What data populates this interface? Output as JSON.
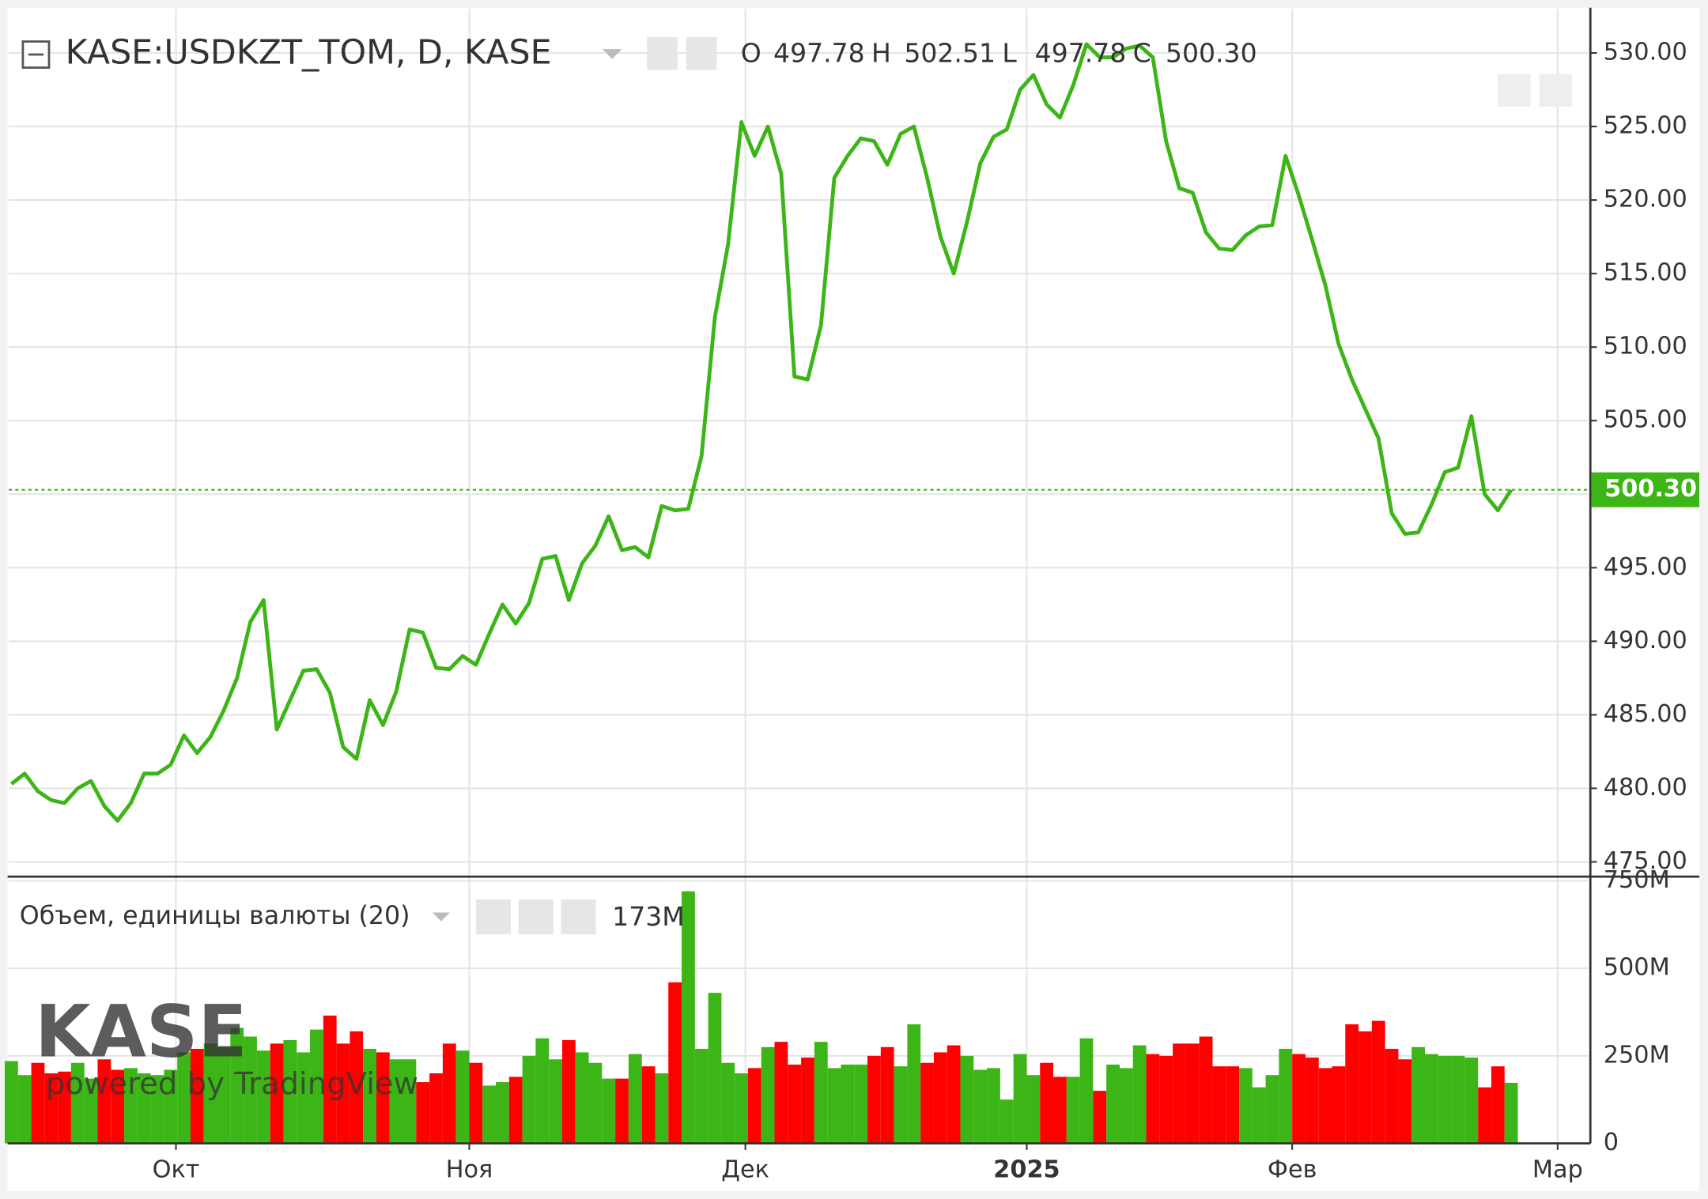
{
  "chart_data": {
    "type": "line",
    "title": "KASE:USDKZT_TOM, D, KASE",
    "ohlc": [
      {
        "key": "O",
        "text": "497.78"
      },
      {
        "key": "H",
        "text": "502.51"
      },
      {
        "key": "L",
        "text": "497.78"
      },
      {
        "key": "C",
        "text": "500.30"
      }
    ],
    "series": [
      {
        "name": "USDKZT_TOM",
        "color": "#3cb516",
        "values": [
          480.3,
          481.0,
          479.8,
          479.2,
          479.0,
          480.0,
          480.5,
          478.8,
          477.8,
          479.0,
          481.0,
          481.0,
          481.6,
          483.6,
          482.4,
          483.5,
          485.3,
          487.5,
          491.3,
          492.8,
          484.0,
          486.0,
          488.0,
          488.1,
          486.5,
          482.8,
          482.0,
          486.0,
          484.3,
          486.6,
          490.8,
          490.6,
          488.2,
          488.1,
          489.0,
          488.4,
          490.5,
          492.5,
          491.2,
          492.6,
          495.6,
          495.8,
          492.8,
          495.3,
          496.5,
          498.5,
          496.2,
          496.4,
          495.7,
          499.2,
          498.9,
          499.0,
          502.6,
          512.0,
          517.0,
          525.3,
          523.0,
          525.0,
          521.8,
          508.0,
          507.8,
          511.5,
          521.5,
          523.0,
          524.2,
          524.0,
          522.4,
          524.5,
          525.0,
          521.5,
          517.5,
          515.0,
          518.5,
          522.5,
          524.3,
          524.8,
          527.5,
          528.5,
          526.5,
          525.6,
          527.8,
          530.6,
          529.7,
          529.7,
          530.3,
          530.5,
          529.7,
          524.0,
          520.8,
          520.5,
          517.8,
          516.7,
          516.6,
          517.6,
          518.2,
          518.3,
          523.0,
          520.3,
          517.3,
          514.2,
          510.2,
          507.8,
          505.8,
          503.8,
          498.7,
          497.3,
          497.4,
          499.3,
          501.5,
          501.8,
          505.3,
          500.0,
          498.9,
          500.3
        ]
      }
    ],
    "last_price_label": "500.30",
    "ylim": [
      474,
      533
    ],
    "yticks": [
      {
        "value": 475,
        "label": "475.00"
      },
      {
        "value": 480,
        "label": "480.00"
      },
      {
        "value": 485,
        "label": "485.00"
      },
      {
        "value": 490,
        "label": "490.00"
      },
      {
        "value": 495,
        "label": "495.00"
      },
      {
        "value": 500,
        "label": "500.00"
      },
      {
        "value": 505,
        "label": "505.00"
      },
      {
        "value": 510,
        "label": "510.00"
      },
      {
        "value": 515,
        "label": "515.00"
      },
      {
        "value": 520,
        "label": "520.00"
      },
      {
        "value": 525,
        "label": "525.00"
      },
      {
        "value": 530,
        "label": "530.00"
      }
    ],
    "xlim": [
      -0.2,
      118.8
    ],
    "xticks": [
      {
        "value": 12.4,
        "label": "Окт"
      },
      {
        "value": 34.5,
        "label": "Ноя"
      },
      {
        "value": 55.3,
        "label": "Дек"
      },
      {
        "value": 76.5,
        "label": "2025"
      },
      {
        "value": 96.5,
        "label": "Фев"
      },
      {
        "value": 116.5,
        "label": "Мар"
      }
    ],
    "volume": {
      "title": "Объем, единицы валюты (20)",
      "last_label": "173M",
      "up_color": "#3cb516",
      "down_color": "#ff0000",
      "values": [
        235,
        195,
        230,
        200,
        205,
        230,
        185,
        240,
        210,
        215,
        200,
        195,
        210,
        260,
        270,
        285,
        275,
        330,
        305,
        265,
        285,
        295,
        260,
        325,
        365,
        285,
        320,
        270,
        260,
        240,
        240,
        175,
        200,
        285,
        265,
        230,
        165,
        175,
        190,
        250,
        300,
        240,
        295,
        260,
        230,
        185,
        185,
        255,
        220,
        200,
        460,
        720,
        270,
        430,
        230,
        200,
        215,
        275,
        290,
        225,
        245,
        290,
        215,
        225,
        225,
        250,
        275,
        220,
        340,
        230,
        260,
        280,
        250,
        210,
        215,
        125,
        255,
        195,
        230,
        190,
        190,
        300,
        150,
        225,
        215,
        280,
        255,
        250,
        285,
        285,
        305,
        220,
        220,
        215,
        160,
        195,
        270,
        255,
        245,
        215,
        220,
        340,
        320,
        350,
        270,
        240,
        275,
        255,
        250,
        250,
        245,
        160,
        220,
        173
      ],
      "ylim": [
        0,
        762
      ],
      "yticks": [
        0,
        {
          "value": 250,
          "label": "250M"
        },
        {
          "value": 500,
          "label": "500M"
        },
        {
          "value": 750,
          "label": "750M"
        }
      ]
    },
    "watermark": {
      "logo": "KASE",
      "powered": "powered by TradingView"
    },
    "grid": true
  }
}
